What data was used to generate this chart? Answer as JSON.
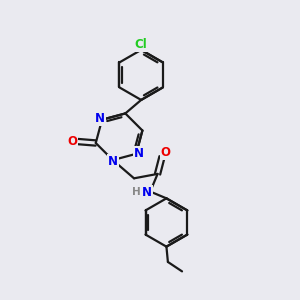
{
  "background_color": "#eaeaf0",
  "bond_color": "#1a1a1a",
  "atom_colors": {
    "N": "#0000ee",
    "O": "#ee0000",
    "Cl": "#22cc22",
    "H": "#888888"
  },
  "font_size": 8.5,
  "font_size_h": 7.5
}
